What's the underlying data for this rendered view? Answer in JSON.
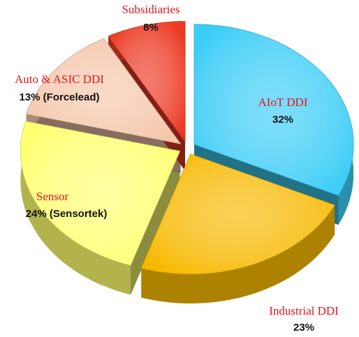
{
  "chart_data": {
    "type": "pie",
    "categories": [
      "AIoT DDI",
      "Industrial DDI",
      "Sensor",
      "Auto & ASIC DDI",
      "Subsidiaries"
    ],
    "values": [
      32,
      23,
      24,
      13,
      8
    ],
    "value_labels": [
      "32%",
      "23%",
      "24% (Sensortek)",
      "13% (Forcelead)",
      "8%"
    ],
    "colors": [
      "#3ccdf6",
      "#f7b900",
      "#ffff70",
      "#f5c6aa",
      "#ec3a24"
    ]
  }
}
